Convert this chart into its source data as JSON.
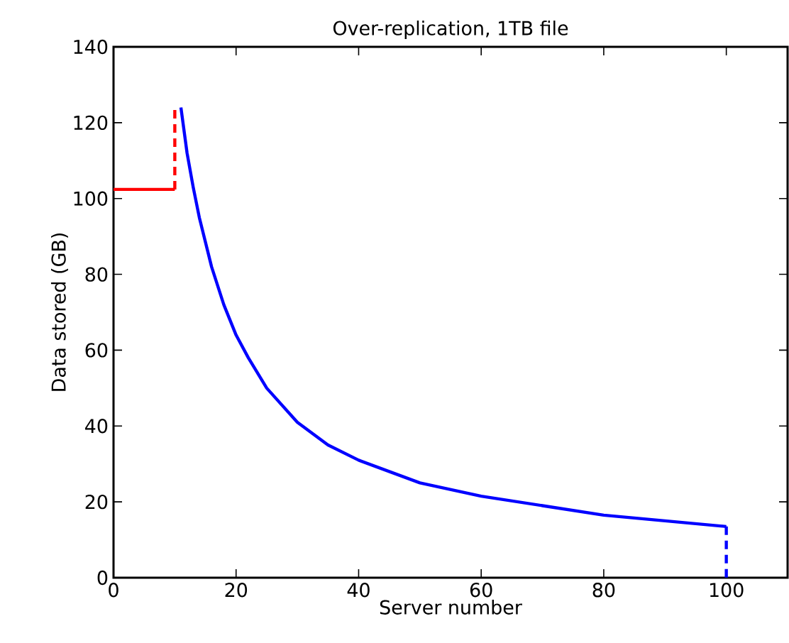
{
  "chart_data": {
    "type": "line",
    "title": "Over-replication, 1TB file",
    "xlabel": "Server number",
    "ylabel": "Data stored (GB)",
    "xlim": [
      0,
      110
    ],
    "ylim": [
      0,
      140
    ],
    "xticks": [
      0,
      20,
      40,
      60,
      80,
      100
    ],
    "yticks": [
      0,
      20,
      40,
      60,
      80,
      100,
      120,
      140
    ],
    "grid": false,
    "series": [
      {
        "color": "#ff0000",
        "line_style": "solid",
        "x": [
          0,
          10
        ],
        "values": [
          102.4,
          102.4
        ]
      },
      {
        "color": "#ff0000",
        "line_style": "dashed",
        "x": [
          10,
          10
        ],
        "values": [
          102.4,
          124
        ]
      },
      {
        "color": "#0000ff",
        "line_style": "solid",
        "x": [
          11,
          12,
          13,
          14,
          16,
          18,
          20,
          22,
          25,
          30,
          35,
          40,
          45,
          50,
          60,
          70,
          80,
          90,
          100
        ],
        "values": [
          124,
          112,
          103,
          95,
          82,
          72,
          64,
          58,
          50,
          41,
          35,
          31,
          28,
          25,
          21.5,
          19,
          16.5,
          15,
          13.5
        ]
      },
      {
        "color": "#0000ff",
        "line_style": "dashed",
        "x": [
          100,
          100
        ],
        "values": [
          13.5,
          0
        ]
      }
    ]
  }
}
